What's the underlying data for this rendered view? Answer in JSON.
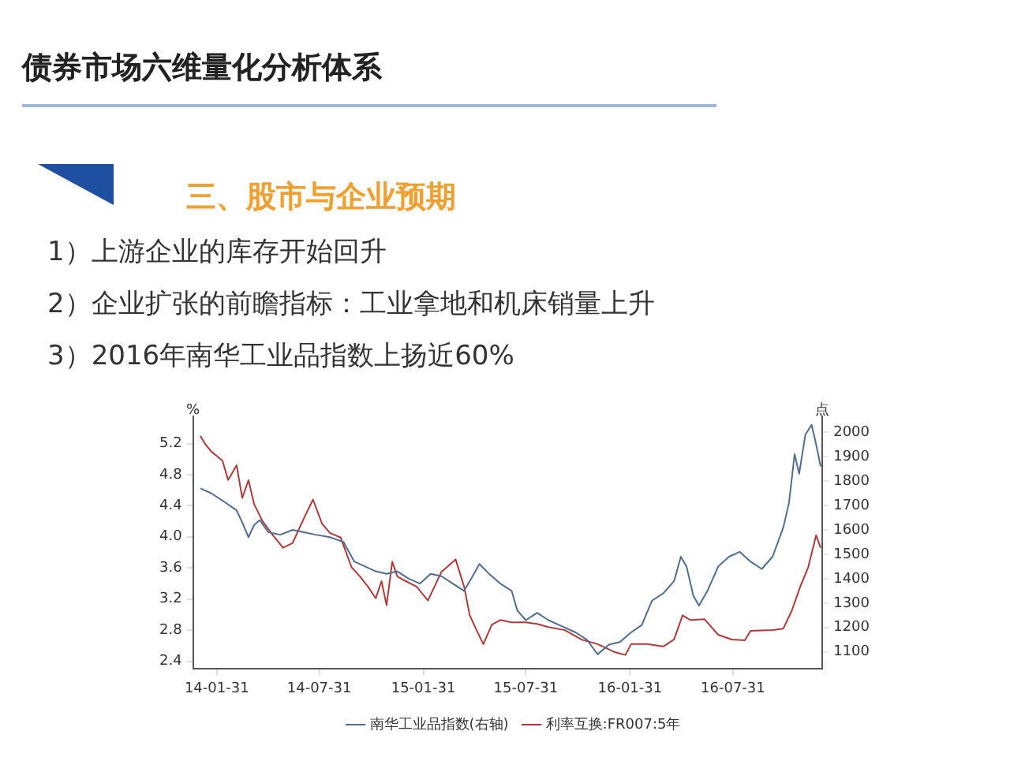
{
  "chart_data": {
    "type": "line",
    "title": "债券市场六维量化分析体系",
    "subtitle": "三、股市与企业预期",
    "annotations": [
      "1）上游企业的库存开始回升",
      "2）企业扩张的前瞻指标：工业拿地和机床销量上升",
      "3）2016年南华工业品指数上扬近60%"
    ],
    "ylabel": "%",
    "y2label": "点",
    "xlim": [
      "2013-12-20",
      "2017-01-05"
    ],
    "xticks": [
      {
        "value": "2014-01-31",
        "label": "14-01-31"
      },
      {
        "value": "2014-07-31",
        "label": "14-07-31"
      },
      {
        "value": "2015-01-31",
        "label": "15-01-31"
      },
      {
        "value": "2015-07-31",
        "label": "15-07-31"
      },
      {
        "value": "2016-01-31",
        "label": "16-01-31"
      },
      {
        "value": "2016-07-31",
        "label": "16-07-31"
      }
    ],
    "ylim": [
      2.3,
      5.55
    ],
    "yticks": [
      2.4,
      2.8,
      3.2,
      3.6,
      {
        "value": 4,
        "label": "4.0"
      },
      4.4,
      4.8,
      5.2
    ],
    "y2lim": [
      1030,
      2065
    ],
    "y2ticks": [
      1100,
      1200,
      1300,
      1400,
      1500,
      1600,
      1700,
      1800,
      1900,
      2000
    ],
    "grid": false,
    "legend": "bottom",
    "marker": "none",
    "line_style": "solid",
    "series": [
      {
        "name": "南华工业品指数(右轴)",
        "color": "#4f6d8f",
        "axis": "y2",
        "x": [
          "2014-01-02",
          "2014-01-21",
          "2014-02-10",
          "2014-03-07",
          "2014-03-17",
          "2014-03-28",
          "2014-04-07",
          "2014-04-17",
          "2014-05-02",
          "2014-05-23",
          "2014-06-14",
          "2014-07-04",
          "2014-07-25",
          "2014-08-19",
          "2014-09-12",
          "2014-10-01",
          "2014-10-20",
          "2014-11-08",
          "2014-11-27",
          "2014-12-16",
          "2015-01-05",
          "2015-01-25",
          "2015-02-13",
          "2015-03-04",
          "2015-03-24",
          "2015-04-13",
          "2015-04-28",
          "2015-05-10",
          "2015-05-27",
          "2015-06-16",
          "2015-07-06",
          "2015-07-16",
          "2015-07-31",
          "2015-08-20",
          "2015-09-09",
          "2015-09-28",
          "2015-10-27",
          "2015-11-16",
          "2015-12-05",
          "2015-12-25",
          "2016-01-13",
          "2016-02-02",
          "2016-02-21",
          "2016-03-10",
          "2016-03-30",
          "2016-04-18",
          "2016-04-30",
          "2016-05-10",
          "2016-05-22",
          "2016-06-01",
          "2016-06-16",
          "2016-07-05",
          "2016-07-24",
          "2016-08-12",
          "2016-08-31",
          "2016-09-20",
          "2016-10-09",
          "2016-10-28",
          "2016-11-07",
          "2016-11-17",
          "2016-11-25",
          "2016-12-06",
          "2016-12-17",
          "2016-12-25",
          "2017-01-02"
        ],
        "values": [
          1770,
          1750,
          1720,
          1680,
          1630,
          1570,
          1620,
          1640,
          1590,
          1580,
          1600,
          1590,
          1580,
          1570,
          1550,
          1470,
          1450,
          1430,
          1420,
          1430,
          1400,
          1380,
          1420,
          1410,
          1380,
          1350,
          1410,
          1460,
          1420,
          1380,
          1350,
          1270,
          1230,
          1260,
          1230,
          1210,
          1180,
          1150,
          1090,
          1130,
          1140,
          1180,
          1210,
          1310,
          1340,
          1390,
          1490,
          1450,
          1330,
          1290,
          1350,
          1450,
          1490,
          1510,
          1470,
          1440,
          1490,
          1610,
          1710,
          1910,
          1830,
          1990,
          2030,
          1950,
          1860
        ]
      },
      {
        "name": "利率互换:FR007:5年",
        "color": "#b03a3a",
        "x": [
          "2014-01-02",
          "2014-01-10",
          "2014-01-21",
          "2014-02-10",
          "2014-02-20",
          "2014-03-07",
          "2014-03-17",
          "2014-03-28",
          "2014-04-07",
          "2014-04-22",
          "2014-05-07",
          "2014-05-28",
          "2014-06-14",
          "2014-07-04",
          "2014-07-20",
          "2014-08-05",
          "2014-08-19",
          "2014-09-07",
          "2014-09-26",
          "2014-10-11",
          "2014-10-25",
          "2014-11-08",
          "2014-11-18",
          "2014-11-27",
          "2014-12-07",
          "2014-12-16",
          "2014-12-31",
          "2015-01-19",
          "2015-02-08",
          "2015-02-28",
          "2015-03-04",
          "2015-03-29",
          "2015-04-13",
          "2015-04-23",
          "2015-05-05",
          "2015-05-17",
          "2015-06-01",
          "2015-06-16",
          "2015-07-06",
          "2015-07-31",
          "2015-08-20",
          "2015-09-09",
          "2015-10-08",
          "2015-11-06",
          "2015-12-05",
          "2016-01-03",
          "2016-01-23",
          "2016-02-02",
          "2016-03-01",
          "2016-03-30",
          "2016-04-18",
          "2016-05-03",
          "2016-05-17",
          "2016-06-11",
          "2016-07-05",
          "2016-07-29",
          "2016-08-21",
          "2016-08-31",
          "2016-10-09",
          "2016-10-28",
          "2016-11-12",
          "2016-11-27",
          "2016-12-11",
          "2016-12-25",
          "2017-01-02"
        ],
        "values": [
          5.3,
          5.2,
          5.1,
          4.98,
          4.73,
          4.92,
          4.5,
          4.73,
          4.42,
          4.2,
          4.05,
          3.86,
          3.92,
          4.24,
          4.48,
          4.17,
          4.05,
          3.99,
          3.61,
          3.49,
          3.36,
          3.21,
          3.43,
          3.12,
          3.68,
          3.49,
          3.43,
          3.36,
          3.18,
          3.49,
          3.55,
          3.71,
          3.36,
          2.99,
          2.8,
          2.62,
          2.87,
          2.93,
          2.9,
          2.9,
          2.88,
          2.84,
          2.8,
          2.68,
          2.62,
          2.52,
          2.48,
          2.62,
          2.62,
          2.59,
          2.68,
          2.99,
          2.93,
          2.94,
          2.74,
          2.68,
          2.67,
          2.79,
          2.8,
          2.82,
          3.05,
          3.36,
          3.61,
          4.02,
          3.86
        ]
      }
    ]
  }
}
